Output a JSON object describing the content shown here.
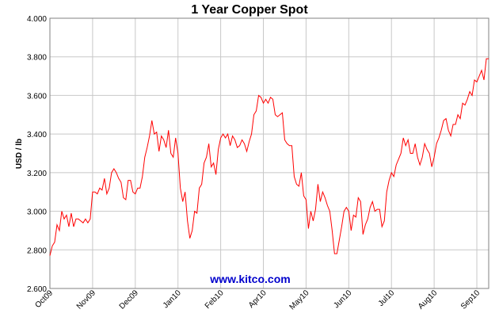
{
  "chart_data": {
    "type": "line",
    "title": "1 Year Copper Spot",
    "y_label": "USD / lb",
    "watermark": "www.kitco.com",
    "color": "#ff0000",
    "grid": true,
    "ylim": [
      2.6,
      4.0
    ],
    "yticks": [
      {
        "value": 2.6,
        "label": "2.600"
      },
      {
        "value": 2.8,
        "label": "2.800"
      },
      {
        "value": 3.0,
        "label": "3.000"
      },
      {
        "value": 3.2,
        "label": "3.200"
      },
      {
        "value": 3.4,
        "label": "3.400"
      },
      {
        "value": 3.6,
        "label": "3.600"
      },
      {
        "value": 3.8,
        "label": "3.800"
      },
      {
        "value": 4.0,
        "label": "4.000"
      }
    ],
    "categories": [
      "Oct09",
      null,
      null,
      null,
      null,
      null,
      null,
      null,
      null,
      null,
      null,
      null,
      null,
      null,
      null,
      null,
      null,
      null,
      "Nov09",
      null,
      null,
      null,
      null,
      null,
      null,
      null,
      null,
      null,
      null,
      null,
      null,
      null,
      null,
      null,
      null,
      null,
      "Dec09",
      null,
      null,
      null,
      null,
      null,
      null,
      null,
      null,
      null,
      null,
      null,
      null,
      null,
      null,
      null,
      null,
      null,
      "Jan10",
      null,
      null,
      null,
      null,
      null,
      null,
      null,
      null,
      null,
      null,
      null,
      null,
      null,
      null,
      null,
      null,
      null,
      "Feb10",
      null,
      null,
      null,
      null,
      null,
      null,
      null,
      null,
      null,
      null,
      null,
      null,
      null,
      null,
      null,
      null,
      null,
      "Apr10",
      null,
      null,
      null,
      null,
      null,
      null,
      null,
      null,
      null,
      null,
      null,
      null,
      null,
      null,
      null,
      null,
      null,
      "May10",
      null,
      null,
      null,
      null,
      null,
      null,
      null,
      null,
      null,
      null,
      null,
      null,
      null,
      null,
      null,
      null,
      null,
      "Jun10",
      null,
      null,
      null,
      null,
      null,
      null,
      null,
      null,
      null,
      null,
      null,
      null,
      null,
      null,
      null,
      null,
      null,
      "Jul10",
      null,
      null,
      null,
      null,
      null,
      null,
      null,
      null,
      null,
      null,
      null,
      null,
      null,
      null,
      null,
      null,
      null,
      "Aug10",
      null,
      null,
      null,
      null,
      null,
      null,
      null,
      null,
      null,
      null,
      null,
      null,
      null,
      null,
      null,
      null,
      null,
      "Sep10",
      null,
      null,
      null,
      null,
      null
    ],
    "values": [
      2.77,
      2.82,
      2.84,
      2.93,
      2.9,
      3.0,
      2.96,
      2.98,
      2.92,
      2.99,
      2.92,
      2.96,
      2.96,
      2.95,
      2.94,
      2.96,
      2.94,
      2.96,
      3.1,
      3.1,
      3.09,
      3.12,
      3.11,
      3.17,
      3.09,
      3.12,
      3.2,
      3.22,
      3.2,
      3.17,
      3.15,
      3.07,
      3.06,
      3.16,
      3.16,
      3.1,
      3.09,
      3.12,
      3.12,
      3.18,
      3.28,
      3.33,
      3.39,
      3.47,
      3.4,
      3.41,
      3.31,
      3.39,
      3.37,
      3.33,
      3.42,
      3.3,
      3.28,
      3.38,
      3.3,
      3.12,
      3.05,
      3.1,
      2.95,
      2.86,
      2.9,
      3.0,
      2.99,
      3.12,
      3.14,
      3.25,
      3.28,
      3.35,
      3.23,
      3.25,
      3.19,
      3.32,
      3.38,
      3.4,
      3.38,
      3.4,
      3.34,
      3.39,
      3.37,
      3.33,
      3.34,
      3.37,
      3.35,
      3.31,
      3.36,
      3.4,
      3.5,
      3.52,
      3.6,
      3.59,
      3.56,
      3.58,
      3.56,
      3.59,
      3.58,
      3.5,
      3.49,
      3.5,
      3.51,
      3.37,
      3.35,
      3.34,
      3.34,
      3.18,
      3.14,
      3.13,
      3.2,
      3.08,
      3.06,
      2.91,
      3.0,
      2.95,
      3.01,
      3.14,
      3.05,
      3.1,
      3.07,
      3.03,
      3.0,
      2.9,
      2.78,
      2.78,
      2.85,
      2.92,
      3.0,
      3.02,
      3.0,
      2.9,
      2.98,
      2.97,
      3.07,
      3.05,
      2.88,
      2.93,
      2.96,
      3.02,
      3.05,
      3.0,
      3.01,
      3.01,
      2.92,
      2.95,
      3.1,
      3.16,
      3.2,
      3.18,
      3.24,
      3.27,
      3.3,
      3.38,
      3.34,
      3.37,
      3.3,
      3.3,
      3.35,
      3.28,
      3.24,
      3.28,
      3.35,
      3.32,
      3.3,
      3.23,
      3.28,
      3.35,
      3.38,
      3.42,
      3.47,
      3.48,
      3.42,
      3.39,
      3.45,
      3.45,
      3.5,
      3.48,
      3.56,
      3.55,
      3.58,
      3.62,
      3.6,
      3.68,
      3.67,
      3.7,
      3.73,
      3.68,
      3.79,
      3.79
    ]
  }
}
